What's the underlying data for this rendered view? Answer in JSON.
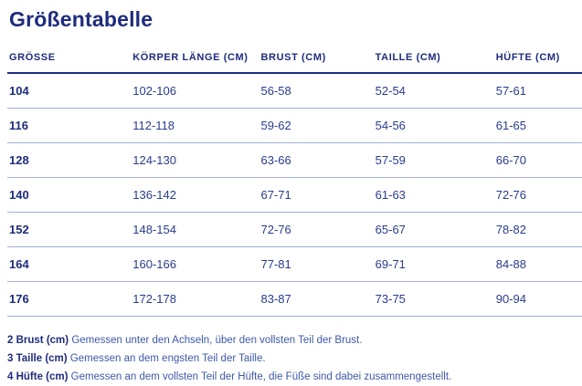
{
  "title": "Größentabelle",
  "colors": {
    "navy_text": "#1e2c7d",
    "value_text": "#2a3c8e",
    "footnote_text": "#3d59a8",
    "row_divider": "#a5b2d6",
    "header_divider": "#1e2c7d",
    "background": "#ffffff"
  },
  "table": {
    "headers": [
      "GRÖSSE",
      "KÖRPER LÄNGE (CM)",
      "BRUST (CM)",
      "TAILLE (CM)",
      "HÜFTE (CM)"
    ],
    "rows": [
      [
        "104",
        "102-106",
        "56-58",
        "52-54",
        "57-61"
      ],
      [
        "116",
        "112-118",
        "59-62",
        "54-56",
        "61-65"
      ],
      [
        "128",
        "124-130",
        "63-66",
        "57-59",
        "66-70"
      ],
      [
        "140",
        "136-142",
        "67-71",
        "61-63",
        "72-76"
      ],
      [
        "152",
        "148-154",
        "72-76",
        "65-67",
        "78-82"
      ],
      [
        "164",
        "160-166",
        "77-81",
        "69-71",
        "84-88"
      ],
      [
        "176",
        "172-178",
        "83-87",
        "73-75",
        "90-94"
      ]
    ]
  },
  "footnotes": [
    {
      "label": "2 Brust (cm)",
      "text": "Gemessen unter den Achseln, über den vollsten Teil der Brust."
    },
    {
      "label": "3 Taille (cm)",
      "text": "Gemessen an dem engsten Teil der Taille."
    },
    {
      "label": "4 Hüfte (cm)",
      "text": "Gemessen an dem vollsten Teil der Hüfte, die Füße sind dabei zusammengestellt."
    }
  ]
}
